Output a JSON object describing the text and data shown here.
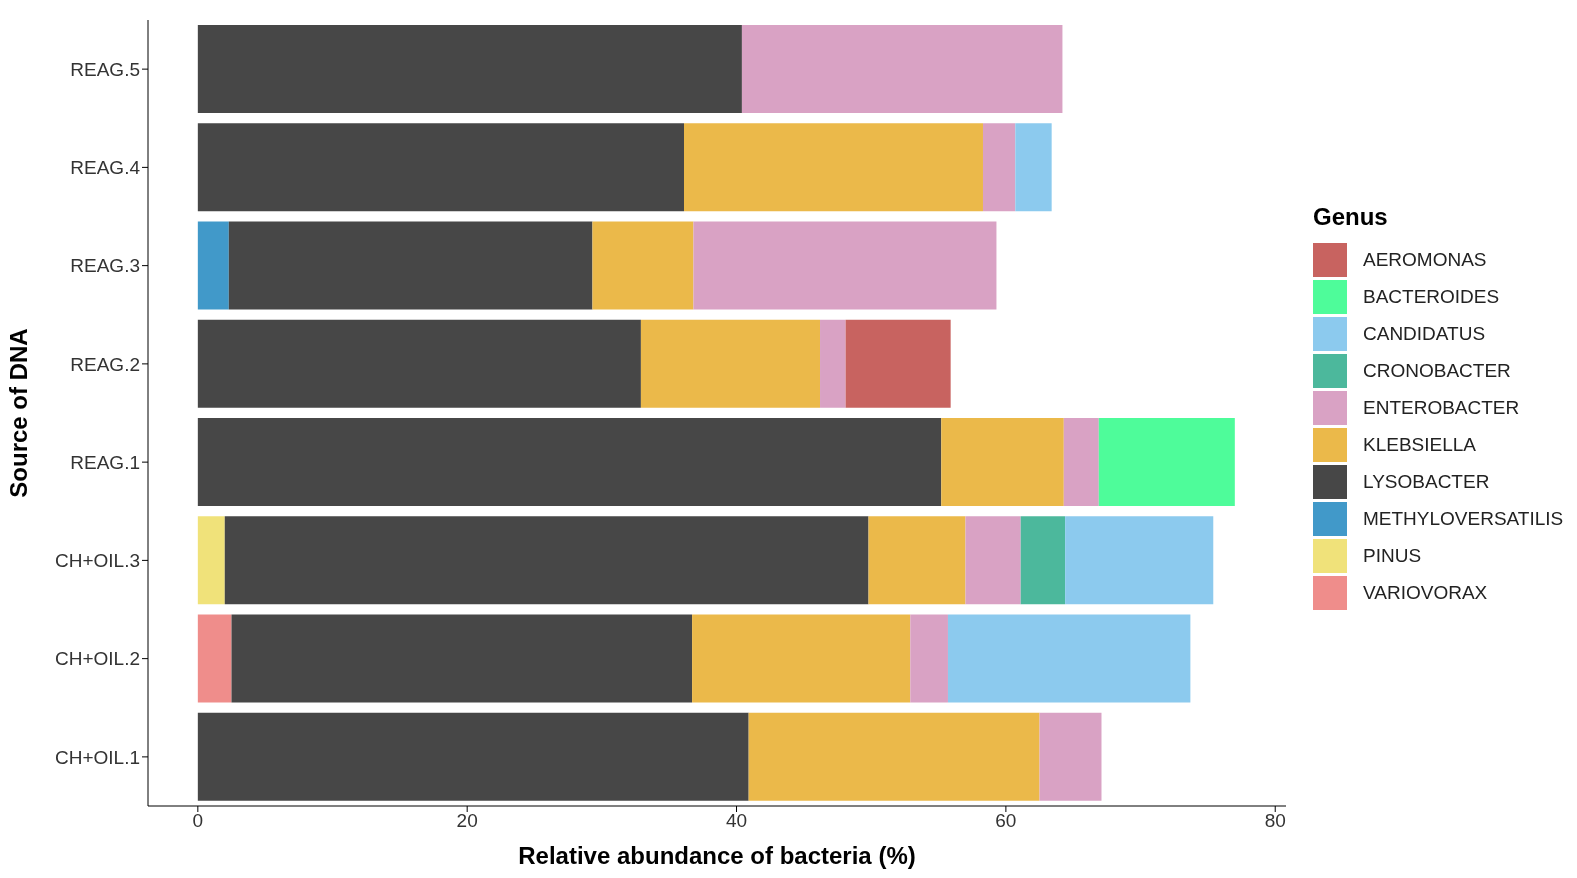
{
  "chart_data": {
    "type": "bar",
    "orientation": "horizontal",
    "stacked": true,
    "xlabel": "Relative abundance of bacteria (%)",
    "ylabel": "Source of DNA",
    "legend_title": "Genus",
    "legend": "right",
    "categories": [
      "REAG.5",
      "REAG.4",
      "REAG.3",
      "REAG.2",
      "REAG.1",
      "CH+OIL.3",
      "CH+OIL.2",
      "CH+OIL.1"
    ],
    "xlim": [
      -3.7,
      80.8
    ],
    "xticks": [
      0,
      20,
      40,
      60,
      80
    ],
    "series": [
      {
        "name": "METHYLOVERSATILIS",
        "color": "#4199c9",
        "values": [
          null,
          null,
          2.3,
          null,
          null,
          null,
          null,
          null
        ]
      },
      {
        "name": "PINUS",
        "color": "#f0e27a",
        "values": [
          null,
          null,
          null,
          null,
          null,
          2.0,
          null,
          null
        ]
      },
      {
        "name": "VARIOVORAX",
        "color": "#ef8d8b",
        "values": [
          null,
          null,
          null,
          null,
          null,
          null,
          2.5,
          null
        ]
      },
      {
        "name": "LYSOBACTER",
        "color": "#474747",
        "values": [
          40.4,
          36.1,
          27.0,
          32.9,
          55.2,
          47.8,
          34.2,
          40.9
        ]
      },
      {
        "name": "KLEBSIELLA",
        "color": "#ebb94a",
        "values": [
          null,
          22.2,
          7.5,
          13.3,
          9.1,
          7.2,
          16.2,
          21.6
        ]
      },
      {
        "name": "ENTEROBACTER",
        "color": "#d9a2c4",
        "values": [
          23.8,
          2.4,
          22.5,
          1.9,
          2.6,
          4.1,
          2.8,
          4.6
        ]
      },
      {
        "name": "CRONOBACTER",
        "color": "#4cb89c",
        "values": [
          null,
          null,
          null,
          null,
          null,
          3.3,
          null,
          null
        ]
      },
      {
        "name": "CANDIDATUS",
        "color": "#8ccaee",
        "values": [
          null,
          2.7,
          null,
          null,
          null,
          11.0,
          18.0,
          null
        ]
      },
      {
        "name": "AEROMONAS",
        "color": "#c86360",
        "values": [
          null,
          null,
          null,
          7.8,
          null,
          null,
          null,
          null
        ]
      },
      {
        "name": "BACTEROIDES",
        "color": "#4efc9a",
        "values": [
          null,
          null,
          null,
          null,
          10.1,
          null,
          null,
          null
        ]
      }
    ]
  }
}
